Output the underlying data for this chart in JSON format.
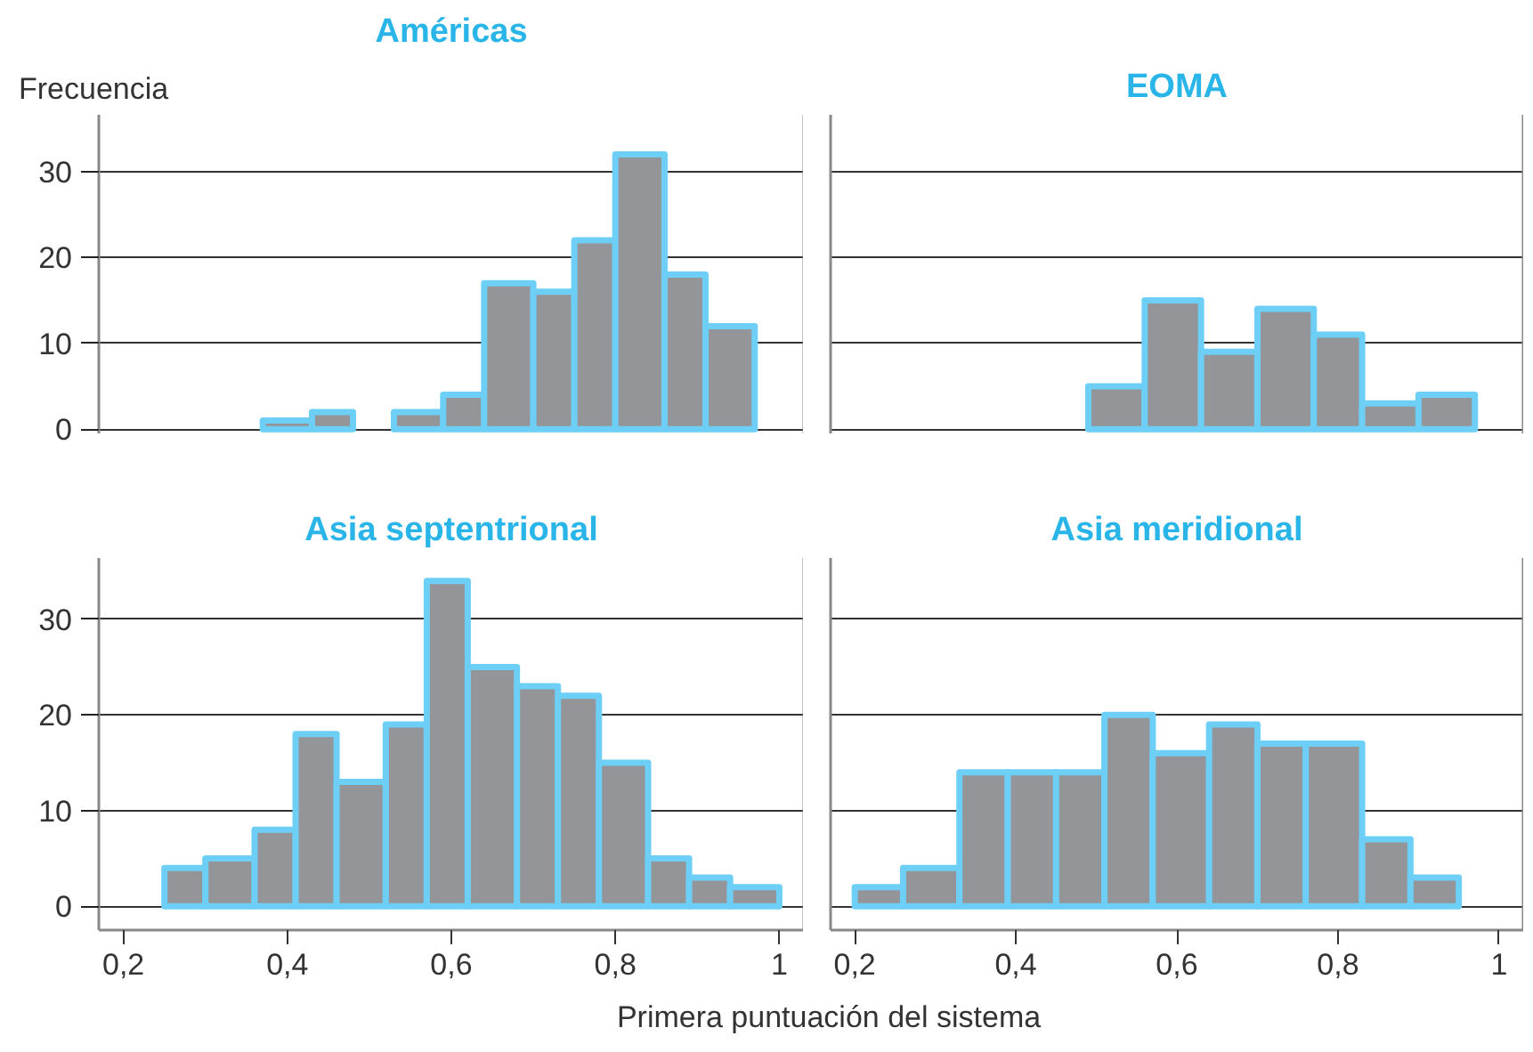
{
  "chart_data": [
    {
      "type": "histogram",
      "title": "Américas",
      "ylabel": "Frecuencia",
      "color": "#939598",
      "bins": [
        0.37,
        0.43,
        0.48,
        0.53,
        0.59,
        0.64,
        0.7,
        0.75,
        0.8,
        0.86,
        0.91,
        0.97
      ],
      "values": [
        1,
        2,
        0,
        2,
        4,
        17,
        16,
        22,
        32,
        18,
        12
      ],
      "xlim": [
        0.17,
        1.03
      ],
      "ylim": [
        -0.5,
        36.6
      ],
      "yticks": [
        0,
        10,
        20,
        30
      ],
      "grid": "y",
      "tick_labels": "y"
    },
    {
      "type": "histogram",
      "title": "EOMA",
      "color": "#939598",
      "bins": [
        0.49,
        0.56,
        0.63,
        0.7,
        0.77,
        0.83,
        0.9,
        0.97
      ],
      "values": [
        5,
        15,
        9,
        14,
        11,
        3,
        4
      ],
      "xlim": [
        0.17,
        1.03
      ],
      "ylim": [
        -0.5,
        36.6
      ],
      "yticks": [
        0,
        10,
        20,
        30
      ],
      "grid": "y",
      "tick_labels": false
    },
    {
      "type": "histogram",
      "title": "Asia septentrional",
      "xlabel": "Primera puntuación del sistema",
      "color": "#939598",
      "bins": [
        0.25,
        0.3,
        0.36,
        0.41,
        0.46,
        0.52,
        0.57,
        0.62,
        0.68,
        0.73,
        0.78,
        0.84,
        0.89,
        0.94,
        1.0
      ],
      "values": [
        4,
        5,
        8,
        18,
        13,
        19,
        34,
        25,
        23,
        22,
        15,
        5,
        3,
        2
      ],
      "xlim": [
        0.17,
        1.03
      ],
      "ylim": [
        -2.5,
        36.4
      ],
      "xticks": [
        {
          "value": 0.2,
          "label": "0,2"
        },
        {
          "value": 0.4,
          "label": "0,4"
        },
        {
          "value": 0.6,
          "label": "0,6"
        },
        {
          "value": 0.8,
          "label": "0,8"
        },
        1
      ],
      "yticks": [
        0,
        10,
        20,
        30
      ],
      "grid": "y"
    },
    {
      "type": "histogram",
      "title": "Asia meridional",
      "color": "#939598",
      "bins": [
        0.2,
        0.26,
        0.33,
        0.39,
        0.45,
        0.51,
        0.57,
        0.64,
        0.7,
        0.76,
        0.83,
        0.89,
        0.95
      ],
      "values": [
        2,
        4,
        14,
        14,
        14,
        20,
        16,
        19,
        17,
        17,
        7,
        3
      ],
      "xlim": [
        0.17,
        1.03
      ],
      "ylim": [
        -2.5,
        36.4
      ],
      "xticks": [
        {
          "value": 0.2,
          "label": "0,2"
        },
        {
          "value": 0.4,
          "label": "0,4"
        },
        {
          "value": 0.6,
          "label": "0,6"
        },
        {
          "value": 0.8,
          "label": "0,8"
        },
        1
      ],
      "yticks": [
        0,
        10,
        20,
        30
      ],
      "grid": "y",
      "tick_labels": "x"
    }
  ]
}
